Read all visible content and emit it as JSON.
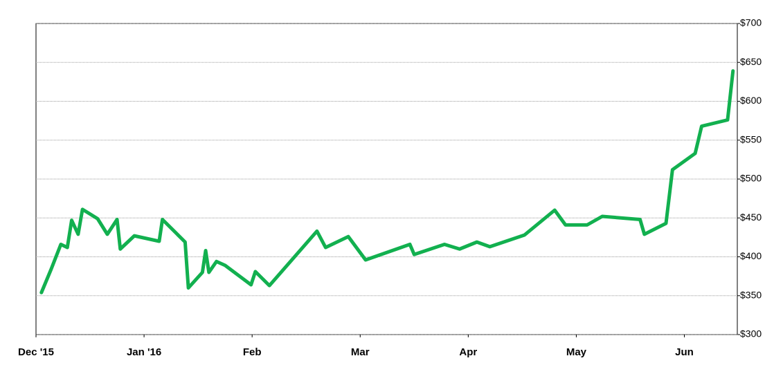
{
  "chart_data": {
    "type": "line",
    "x": [
      0.05,
      0.14,
      0.23,
      0.29,
      0.33,
      0.39,
      0.43,
      0.57,
      0.66,
      0.75,
      0.78,
      0.91,
      1.14,
      1.17,
      1.38,
      1.41,
      1.54,
      1.57,
      1.6,
      1.67,
      1.75,
      1.99,
      2.03,
      2.16,
      2.6,
      2.68,
      2.89,
      3.05,
      3.46,
      3.5,
      3.78,
      3.92,
      4.08,
      4.2,
      4.52,
      4.8,
      4.9,
      5.1,
      5.24,
      5.59,
      5.63,
      5.83,
      5.89,
      6.1,
      6.16,
      6.4,
      6.45
    ],
    "series": [
      {
        "color": "#12b04f",
        "values": [
          354,
          384,
          416,
          412,
          447,
          429,
          461,
          449,
          429,
          448,
          410,
          427,
          420,
          448,
          419,
          360,
          380,
          408,
          380,
          394,
          389,
          364,
          381,
          363,
          433,
          412,
          426,
          396,
          416,
          403,
          416,
          410,
          419,
          413,
          428,
          460,
          441,
          441,
          452,
          448,
          429,
          443,
          512,
          533,
          568,
          576,
          639
        ]
      }
    ],
    "xlim": [
      0,
      6.49
    ],
    "xticks": [
      {
        "value": 0,
        "label": "Dec '15"
      },
      {
        "value": 1,
        "label": "Jan '16"
      },
      {
        "value": 2,
        "label": "Feb"
      },
      {
        "value": 3,
        "label": "Mar"
      },
      {
        "value": 4,
        "label": "Apr"
      },
      {
        "value": 5,
        "label": "May"
      },
      {
        "value": 6,
        "label": "Jun"
      }
    ],
    "ylim": [
      300,
      700
    ],
    "yticks": [
      {
        "value": 300,
        "label": "$300"
      },
      {
        "value": 350,
        "label": "$350"
      },
      {
        "value": 400,
        "label": "$400"
      },
      {
        "value": 450,
        "label": "$450"
      },
      {
        "value": 500,
        "label": "$500"
      },
      {
        "value": 550,
        "label": "$550"
      },
      {
        "value": 600,
        "label": "$600"
      },
      {
        "value": 650,
        "label": "$650"
      },
      {
        "value": 700,
        "label": "$700"
      }
    ],
    "grid": true
  }
}
